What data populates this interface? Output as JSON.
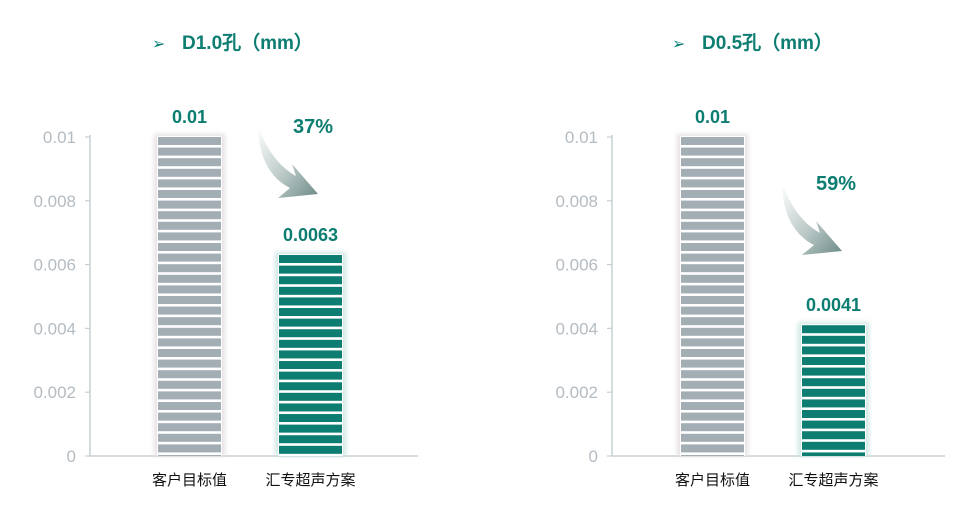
{
  "colors": {
    "accent": "#0d7d72",
    "target_bar": "#a3adb4",
    "axis": "#c8cfd4",
    "tick_text": "#b4bcc2"
  },
  "chart_data": [
    {
      "type": "bar",
      "title": "D1.0孔（mm）",
      "categories": [
        "客户目标值",
        "汇专超声方案"
      ],
      "values": [
        0.01,
        0.0063
      ],
      "data_labels": [
        "0.01",
        "0.0063"
      ],
      "ylim": [
        0,
        0.01
      ],
      "yticks": [
        "0",
        "0.002",
        "0.004",
        "0.006",
        "0.008",
        "0.01"
      ],
      "annotation": "37%",
      "grid": false
    },
    {
      "type": "bar",
      "title": "D0.5孔（mm）",
      "categories": [
        "客户目标值",
        "汇专超声方案"
      ],
      "values": [
        0.01,
        0.0041
      ],
      "data_labels": [
        "0.01",
        "0.0041"
      ],
      "ylim": [
        0,
        0.01
      ],
      "yticks": [
        "0",
        "0.002",
        "0.004",
        "0.006",
        "0.008",
        "0.01"
      ],
      "annotation": "59%",
      "grid": false
    }
  ]
}
